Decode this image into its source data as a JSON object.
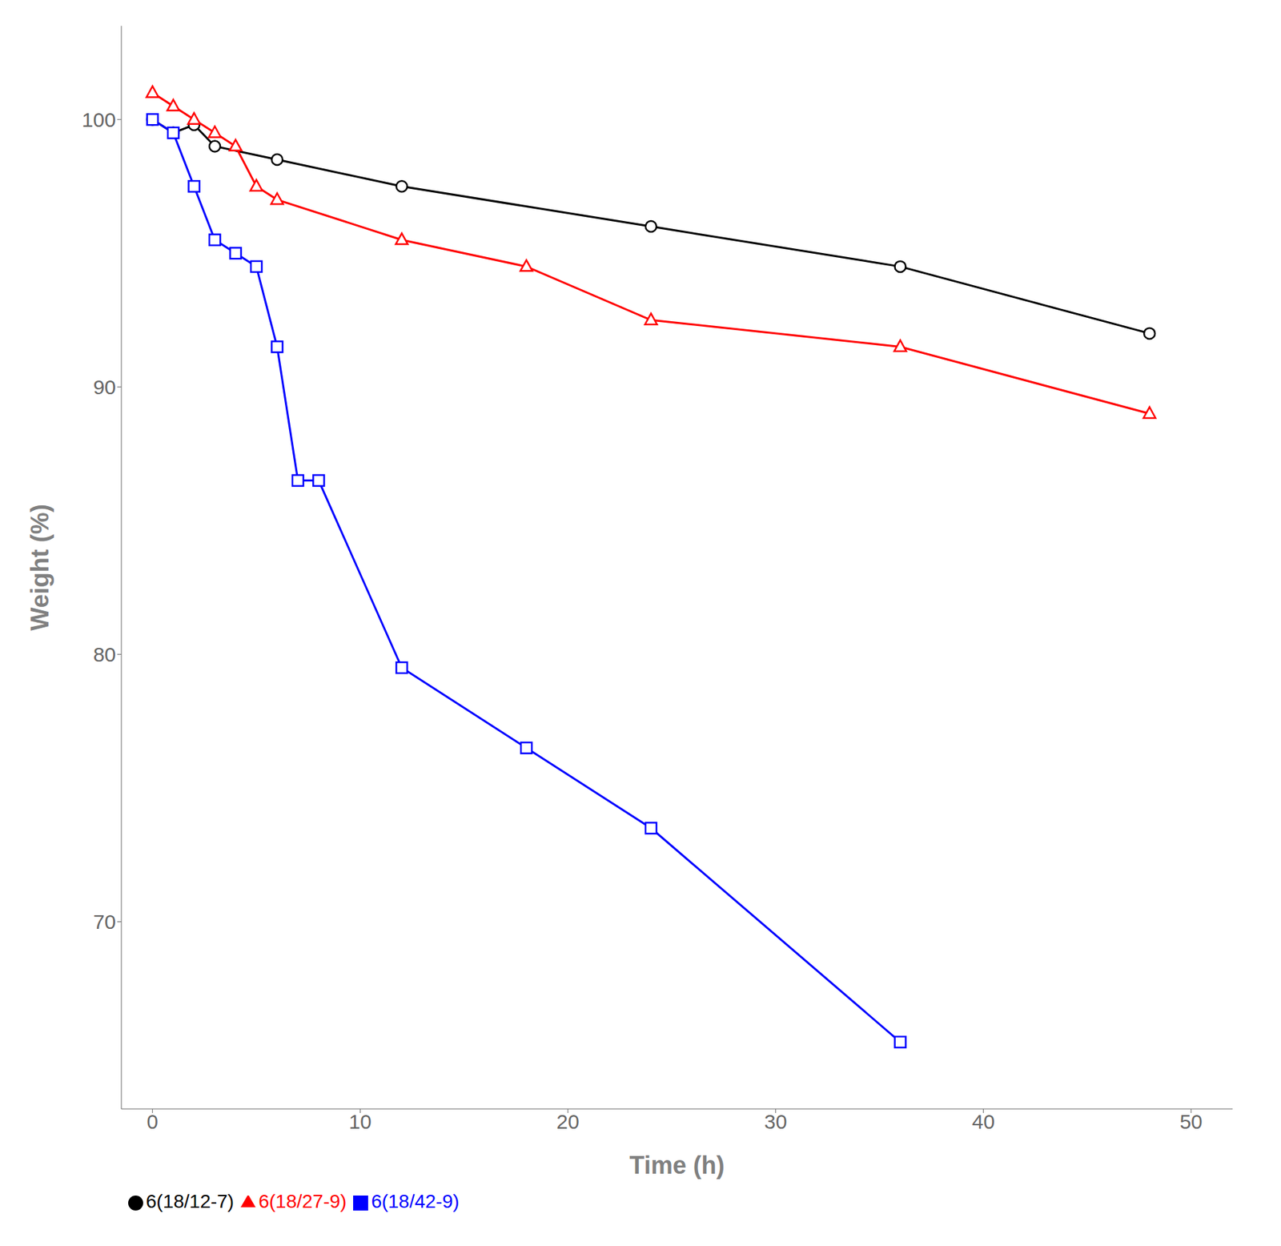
{
  "chart_data": {
    "type": "line",
    "xlabel": "Time (h)",
    "ylabel": "Weight (%)",
    "xlim": [
      -1.5,
      52
    ],
    "ylim": [
      63,
      103.5
    ],
    "xticks": [
      0,
      10,
      20,
      30,
      40,
      50
    ],
    "yticks": [
      70,
      80,
      90,
      100
    ],
    "grid": false,
    "legend": "lower left",
    "series": [
      {
        "name": "6(18/12-7)",
        "color": "#000000",
        "marker": "circle",
        "x": [
          0,
          1,
          2,
          3,
          6,
          12,
          24,
          36,
          48
        ],
        "values": [
          100.0,
          99.5,
          99.8,
          99.0,
          98.5,
          97.5,
          96.0,
          94.5,
          92.0
        ]
      },
      {
        "name": "6(18/27-9)",
        "color": "#ff0000",
        "marker": "triangle",
        "x": [
          0,
          1,
          2,
          3,
          4,
          5,
          6,
          12,
          18,
          24,
          36,
          48
        ],
        "values": [
          101.0,
          100.5,
          100.0,
          99.5,
          99.0,
          97.5,
          97.0,
          95.5,
          94.5,
          92.5,
          91.5,
          89.0
        ]
      },
      {
        "name": "6(18/42-9)",
        "color": "#0000ff",
        "marker": "square",
        "x": [
          0,
          1,
          2,
          3,
          4,
          5,
          6,
          7,
          8,
          12,
          18,
          24,
          36
        ],
        "values": [
          100.0,
          99.5,
          97.5,
          95.5,
          95.0,
          94.5,
          91.5,
          86.5,
          86.5,
          79.5,
          76.5,
          73.5,
          65.5
        ]
      }
    ]
  }
}
